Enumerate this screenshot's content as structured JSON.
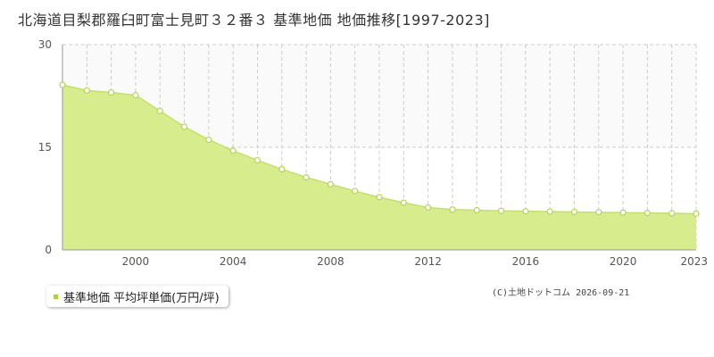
{
  "title": "北海道目梨郡羅臼町富士見町３２番３ 基準地価 地価推移[1997-2023]",
  "copyright": "(C)土地ドットコム 2026-09-21",
  "colors": {
    "fill": "#d7ec8c",
    "line": "#c4e06c",
    "marker_fill": "#ffffff",
    "marker_stroke": "#b3d458",
    "legend_marker": "#a9d13a",
    "grid": "#cccccc",
    "axis": "#999999",
    "band": "#fafafa"
  },
  "chart_data": {
    "type": "area",
    "title": "",
    "xlabel": "",
    "ylabel": "",
    "xlim": [
      1997,
      2023
    ],
    "ylim": [
      0,
      30
    ],
    "y_ticks": [
      "0",
      "15",
      "30"
    ],
    "x_ticks": [
      "2000",
      "2004",
      "2008",
      "2012",
      "2016",
      "2020",
      "2023"
    ],
    "grid": true,
    "legend_position": "bottom-left",
    "series": [
      {
        "name": "基準地価 平均坪単価(万円/坪)",
        "x": [
          1997,
          1998,
          1999,
          2000,
          2001,
          2002,
          2003,
          2004,
          2005,
          2006,
          2007,
          2008,
          2009,
          2010,
          2011,
          2012,
          2013,
          2014,
          2015,
          2016,
          2017,
          2018,
          2019,
          2020,
          2021,
          2022,
          2023
        ],
        "values": [
          24.1,
          23.3,
          23.0,
          22.6,
          20.3,
          18.0,
          16.1,
          14.5,
          13.1,
          11.8,
          10.6,
          9.6,
          8.6,
          7.7,
          6.9,
          6.2,
          5.9,
          5.8,
          5.7,
          5.65,
          5.6,
          5.55,
          5.5,
          5.45,
          5.4,
          5.35,
          5.3
        ]
      }
    ]
  }
}
